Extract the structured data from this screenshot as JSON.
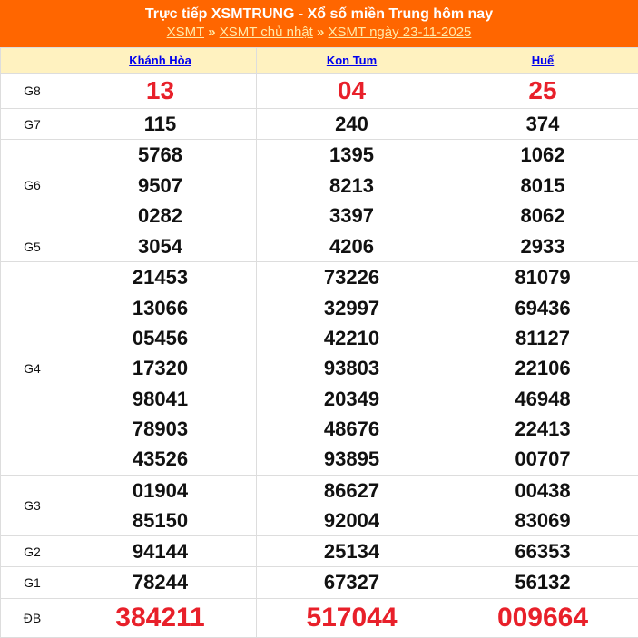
{
  "header": {
    "title": "Trực tiếp XSMTRUNG - Xổ số miền Trung hôm nay",
    "breadcrumb": [
      "XSMT",
      "XSMT chủ nhật",
      "XSMT ngày 23-11-2025"
    ],
    "separator": "»"
  },
  "provinces": [
    "Khánh Hòa",
    "Kon Tum",
    "Huế"
  ],
  "prizes": [
    {
      "label": "G8",
      "numbers": [
        [
          "13"
        ],
        [
          "04"
        ],
        [
          "25"
        ]
      ]
    },
    {
      "label": "G7",
      "numbers": [
        [
          "115"
        ],
        [
          "240"
        ],
        [
          "374"
        ]
      ]
    },
    {
      "label": "G6",
      "numbers": [
        [
          "5768",
          "9507",
          "0282"
        ],
        [
          "1395",
          "8213",
          "3397"
        ],
        [
          "1062",
          "8015",
          "8062"
        ]
      ]
    },
    {
      "label": "G5",
      "numbers": [
        [
          "3054"
        ],
        [
          "4206"
        ],
        [
          "2933"
        ]
      ]
    },
    {
      "label": "G4",
      "numbers": [
        [
          "21453",
          "13066",
          "05456",
          "17320",
          "98041",
          "78903",
          "43526"
        ],
        [
          "73226",
          "32997",
          "42210",
          "93803",
          "20349",
          "48676",
          "93895"
        ],
        [
          "81079",
          "69436",
          "81127",
          "22106",
          "46948",
          "22413",
          "00707"
        ]
      ]
    },
    {
      "label": "G3",
      "numbers": [
        [
          "01904",
          "85150"
        ],
        [
          "86627",
          "92004"
        ],
        [
          "00438",
          "83069"
        ]
      ]
    },
    {
      "label": "G2",
      "numbers": [
        [
          "94144"
        ],
        [
          "25134"
        ],
        [
          "66353"
        ]
      ]
    },
    {
      "label": "G1",
      "numbers": [
        [
          "78244"
        ],
        [
          "67327"
        ],
        [
          "56132"
        ]
      ]
    },
    {
      "label": "ĐB",
      "numbers": [
        [
          "384211"
        ],
        [
          "517044"
        ],
        [
          "009664"
        ]
      ]
    }
  ],
  "colors": {
    "header": "#ff6600",
    "highlight": "#e8202a",
    "column_header": "#fff2c0"
  }
}
